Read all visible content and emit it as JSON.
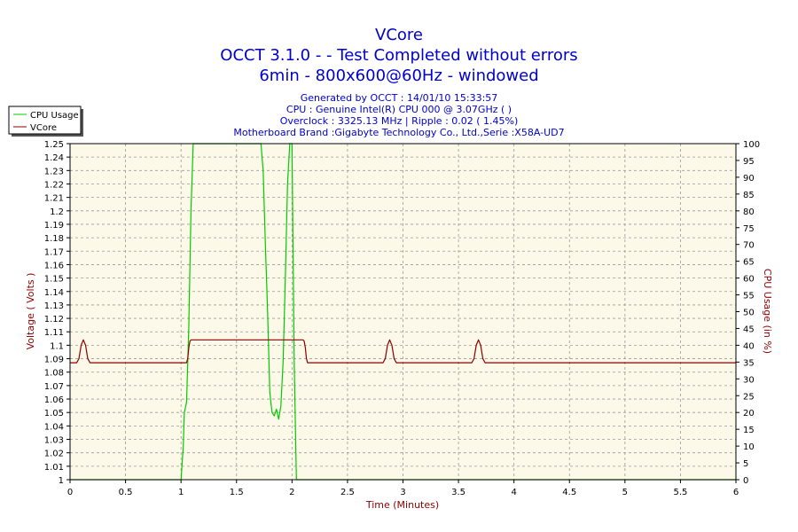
{
  "chart_data": {
    "type": "line",
    "title_lines": [
      "VCore",
      "OCCT 3.1.0 -  - Test Completed without errors",
      "6min - 800x600@60Hz - windowed"
    ],
    "info_lines": [
      "Generated by OCCT : 14/01/10 15:33:57",
      "CPU : Genuine Intel(R) CPU 000 @ 3.07GHz (  )",
      "Overclock : 3325.13 MHz | Ripple : 0.02 ( 1.45%)",
      "Motherboard Brand :Gigabyte Technology Co., Ltd.,Serie :X58A-UD7"
    ],
    "xlabel": "Time (Minutes)",
    "ylabel_left": "Voltage ( Volts )",
    "ylabel_right": "CPU Usage (in %)",
    "xlim": [
      0,
      6
    ],
    "ylim_left": [
      1,
      1.25
    ],
    "ylim_right": [
      0,
      100
    ],
    "x_ticks": [
      "0",
      "0.5",
      "1",
      "1.5",
      "2",
      "2.5",
      "3",
      "3.5",
      "4",
      "4.5",
      "5",
      "5.5",
      "6"
    ],
    "y_ticks_left": [
      "1",
      "1.01",
      "1.02",
      "1.03",
      "1.04",
      "1.05",
      "1.06",
      "1.07",
      "1.08",
      "1.09",
      "1.1",
      "1.11",
      "1.12",
      "1.13",
      "1.14",
      "1.15",
      "1.16",
      "1.17",
      "1.18",
      "1.19",
      "1.2",
      "1.21",
      "1.22",
      "1.23",
      "1.24",
      "1.25"
    ],
    "y_ticks_right": [
      "0",
      "5",
      "10",
      "15",
      "20",
      "25",
      "30",
      "35",
      "40",
      "45",
      "50",
      "55",
      "60",
      "65",
      "70",
      "75",
      "80",
      "85",
      "90",
      "95",
      "100"
    ],
    "grid": true,
    "legend_position": "top-left",
    "legend": [
      "CPU Usage",
      "VCore"
    ],
    "series": [
      {
        "name": "CPU Usage",
        "axis": "right",
        "color": "#00cc00",
        "x": [
          0,
          0.99,
          1.0,
          1.02,
          1.03,
          1.05,
          1.07,
          1.09,
          1.11,
          1.13,
          1.15,
          1.5,
          1.72,
          1.74,
          1.76,
          1.78,
          1.8,
          1.82,
          1.84,
          1.86,
          1.88,
          1.9,
          1.92,
          1.94,
          1.96,
          1.98,
          2.0,
          2.02,
          2.04,
          2.06,
          6
        ],
        "values": [
          0,
          0,
          0,
          10,
          20,
          23,
          45,
          80,
          100,
          100,
          100,
          100,
          100,
          92,
          70,
          50,
          26,
          20,
          19,
          21,
          18,
          22,
          35,
          60,
          88,
          100,
          100,
          35,
          0,
          0,
          0
        ]
      },
      {
        "name": "VCore",
        "axis": "left",
        "color": "#8b0000",
        "x": [
          0,
          0.06,
          0.08,
          0.1,
          0.12,
          0.14,
          0.16,
          0.18,
          1.05,
          1.06,
          1.07,
          1.08,
          1.09,
          2.1,
          2.11,
          2.12,
          2.13,
          2.14,
          2.82,
          2.84,
          2.86,
          2.88,
          2.9,
          2.92,
          2.94,
          3.62,
          3.64,
          3.66,
          3.68,
          3.7,
          3.72,
          3.74,
          6
        ],
        "values": [
          1.087,
          1.087,
          1.09,
          1.1,
          1.104,
          1.1,
          1.09,
          1.087,
          1.087,
          1.09,
          1.098,
          1.103,
          1.104,
          1.104,
          1.103,
          1.098,
          1.09,
          1.087,
          1.087,
          1.09,
          1.1,
          1.104,
          1.1,
          1.09,
          1.087,
          1.087,
          1.09,
          1.1,
          1.104,
          1.1,
          1.09,
          1.087,
          1.087
        ]
      }
    ]
  }
}
